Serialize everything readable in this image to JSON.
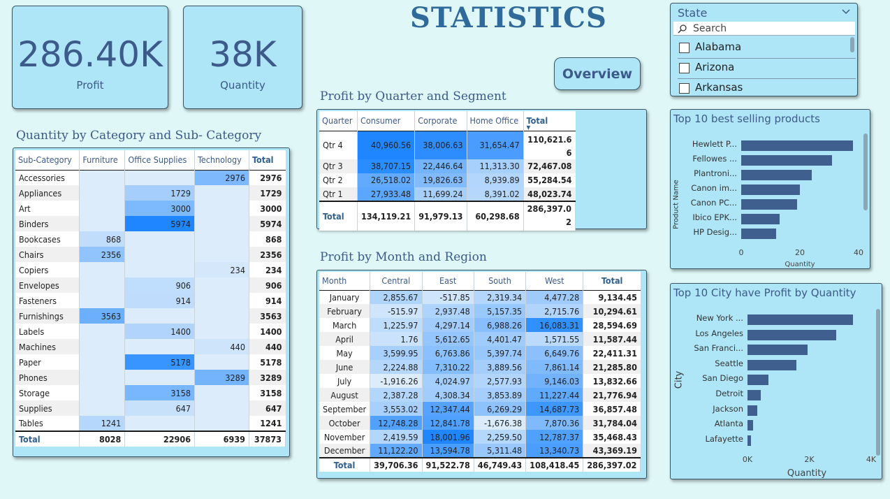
{
  "page_title": "STATISTICS",
  "kpis": [
    {
      "value": "286.40K",
      "label": "Profit"
    },
    {
      "value": "38K",
      "label": "Quantity"
    }
  ],
  "overview_button": "Overview",
  "slicer": {
    "title": "State",
    "search_placeholder": "Search",
    "items": [
      "Alabama",
      "Arizona",
      "Arkansas"
    ]
  },
  "colors": {
    "background": "#dff7f7",
    "card": "#aee6f7",
    "bar": "#3f5f8f",
    "heat_max": "#1f86ff",
    "heat_min": "#dcecfb"
  },
  "cat_matrix": {
    "title": "Quantity by Category and Sub- Category",
    "headers": [
      "Sub-Category",
      "Furniture",
      "Office Supplies",
      "Technology",
      "Total"
    ],
    "rows": [
      [
        "Accessories",
        "",
        "",
        "2976",
        "2976"
      ],
      [
        "Appliances",
        "",
        "1729",
        "",
        "1729"
      ],
      [
        "Art",
        "",
        "3000",
        "",
        "3000"
      ],
      [
        "Binders",
        "",
        "5974",
        "",
        "5974"
      ],
      [
        "Bookcases",
        "868",
        "",
        "",
        "868"
      ],
      [
        "Chairs",
        "2356",
        "",
        "",
        "2356"
      ],
      [
        "Copiers",
        "",
        "",
        "234",
        "234"
      ],
      [
        "Envelopes",
        "",
        "906",
        "",
        "906"
      ],
      [
        "Fasteners",
        "",
        "914",
        "",
        "914"
      ],
      [
        "Furnishings",
        "3563",
        "",
        "",
        "3563"
      ],
      [
        "Labels",
        "",
        "1400",
        "",
        "1400"
      ],
      [
        "Machines",
        "",
        "",
        "440",
        "440"
      ],
      [
        "Paper",
        "",
        "5178",
        "",
        "5178"
      ],
      [
        "Phones",
        "",
        "",
        "3289",
        "3289"
      ],
      [
        "Storage",
        "",
        "3158",
        "",
        "3158"
      ],
      [
        "Supplies",
        "",
        "647",
        "",
        "647"
      ],
      [
        "Tables",
        "1241",
        "",
        "",
        "1241"
      ]
    ],
    "total": [
      "Total",
      "8028",
      "22906",
      "6939",
      "37873"
    ]
  },
  "quarter_matrix": {
    "title": "Profit by Quarter and Segment",
    "headers": [
      "Quarter",
      "Consumer",
      "Corporate",
      "Home Office",
      "Total"
    ],
    "rows": [
      [
        "Qtr 4",
        "40,960.56",
        "38,006.63",
        "31,654.47",
        "110,621.6\n6"
      ],
      [
        "Qtr 3",
        "38,707.15",
        "22,446.64",
        "11,313.30",
        "72,467.08"
      ],
      [
        "Qtr 2",
        "26,518.02",
        "19,826.63",
        "8,939.89",
        "55,284.54"
      ],
      [
        "Qtr 1",
        "27,933.48",
        "11,699.24",
        "8,391.02",
        "48,023.74"
      ]
    ],
    "total": [
      "Total",
      "134,119.21",
      "91,979.13",
      "60,298.68",
      "286,397.0\n2"
    ]
  },
  "month_matrix": {
    "title": "Profit by Month and Region",
    "headers": [
      "Month",
      "Central",
      "East",
      "South",
      "West",
      "Total"
    ],
    "rows": [
      [
        "January",
        "2,855.67",
        "-517.85",
        "2,319.34",
        "4,477.28",
        "9,134.45"
      ],
      [
        "February",
        "-515.97",
        "2,937.48",
        "5,157.35",
        "2,715.76",
        "10,294.61"
      ],
      [
        "March",
        "1,225.97",
        "4,297.14",
        "6,988.26",
        "16,083.31",
        "28,594.69"
      ],
      [
        "April",
        "1.76",
        "5,612.65",
        "4,401.47",
        "1,571.55",
        "11,587.44"
      ],
      [
        "May",
        "3,599.95",
        "6,763.86",
        "5,397.74",
        "6,649.76",
        "22,411.31"
      ],
      [
        "June",
        "2,224.88",
        "7,310.22",
        "3,889.56",
        "7,861.14",
        "21,285.80"
      ],
      [
        "July",
        "-1,916.26",
        "4,024.97",
        "2,577.93",
        "9,146.03",
        "13,832.66"
      ],
      [
        "August",
        "2,387.28",
        "4,308.34",
        "3,853.89",
        "11,227.44",
        "21,776.94"
      ],
      [
        "September",
        "3,553.02",
        "12,347.44",
        "6,269.29",
        "14,687.73",
        "36,857.48"
      ],
      [
        "October",
        "12,748.28",
        "12,841.78",
        "-1,676.38",
        "7,870.36",
        "31,784.04"
      ],
      [
        "November",
        "2,419.59",
        "18,001.96",
        "2,259.50",
        "12,787.37",
        "35,468.43"
      ],
      [
        "December",
        "11,122.20",
        "13,594.78",
        "5,311.48",
        "13,340.73",
        "43,369.19"
      ]
    ],
    "total": [
      "Total",
      "39,706.36",
      "91,522.78",
      "46,749.43",
      "108,418.45",
      "286,397.02"
    ]
  },
  "chart_data": [
    {
      "type": "bar",
      "orientation": "horizontal",
      "title": "Top 10 best selling products",
      "ylabel": "Product Name",
      "xlabel": "Quantity",
      "categories": [
        "Hewlett P...",
        "Fellowes ...",
        "Plantroni...",
        "Canon im...",
        "Canon PC...",
        "Ibico EPK...",
        "HP Desig..."
      ],
      "values": [
        38,
        31,
        24,
        20,
        19,
        13,
        12
      ],
      "xticks": [
        "0",
        "20",
        "40"
      ],
      "xlim": [
        0,
        40
      ]
    },
    {
      "type": "bar",
      "orientation": "horizontal",
      "title": "Top 10 City have Profit by Quantity",
      "ylabel": "City",
      "xlabel": "Quantity",
      "categories": [
        "New York ...",
        "Los Angeles",
        "San Franci...",
        "Seattle",
        "San Diego",
        "Detroit",
        "Jackson",
        "Atlanta",
        "Lafayette"
      ],
      "values": [
        3417,
        2879,
        1935,
        1590,
        670,
        440,
        320,
        170,
        120
      ],
      "xticks": [
        "0K",
        "2K",
        "4K"
      ],
      "xlim": [
        0,
        4000
      ]
    }
  ]
}
